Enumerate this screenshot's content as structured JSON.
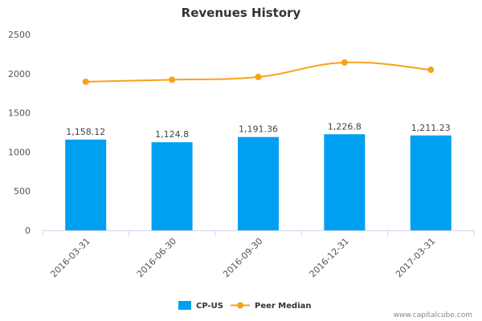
{
  "chart_data": {
    "type": "bar",
    "title": "Revenues History",
    "categories": [
      "2016-03-31",
      "2016-06-30",
      "2016-09-30",
      "2016-12-31",
      "2017-03-31"
    ],
    "series": [
      {
        "name": "CP-US",
        "kind": "bar",
        "values": [
          1158.12,
          1124.8,
          1191.36,
          1226.8,
          1211.23
        ],
        "value_labels": [
          "1,158.12",
          "1,124.8",
          "1,191.36",
          "1,226.8",
          "1,211.23"
        ],
        "color": "#00a0f0"
      },
      {
        "name": "Peer Median",
        "kind": "line",
        "values": [
          1897,
          1923,
          1958,
          2143,
          2050
        ],
        "color": "#f7a21b"
      }
    ],
    "ylim": [
      0,
      2500
    ],
    "yticks": [
      "0",
      "500",
      "1000",
      "1500",
      "2000",
      "2500"
    ],
    "xlabel": "",
    "ylabel": "",
    "grid": false,
    "legend_position": "bottom"
  },
  "footer": "www.capitalcube.com"
}
